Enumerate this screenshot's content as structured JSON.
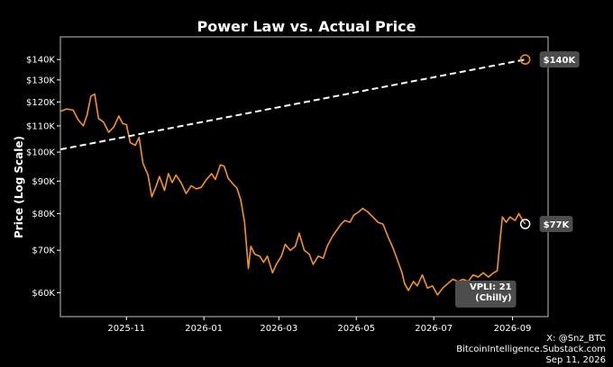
{
  "chart_data": {
    "type": "line",
    "title": "Power Law vs. Actual Price",
    "xlabel": "",
    "ylabel": "Price (Log Scale)",
    "y_scale": "log",
    "grid": false,
    "y_ticks": [
      60000,
      70000,
      80000,
      90000,
      100000,
      110000,
      120000,
      130000,
      140000
    ],
    "y_tick_labels": [
      "$60K",
      "$70K",
      "$80K",
      "$90K",
      "$100K",
      "$110K",
      "$120K",
      "$130K",
      "$140K"
    ],
    "ylim": [
      55000,
      152000
    ],
    "x_ticks": [
      "2025-11",
      "2026-01",
      "2026-03",
      "2026-05",
      "2026-07",
      "2026-09"
    ],
    "xlim": [
      "2025-09-10",
      "2026-09-29"
    ],
    "series": [
      {
        "line_style": "solid",
        "color": "#f7931a",
        "points": [
          [
            "2025-09-10",
            116000
          ],
          [
            "2025-09-15",
            117000
          ],
          [
            "2025-09-20",
            116500
          ],
          [
            "2025-09-24",
            112500
          ],
          [
            "2025-09-28",
            110000
          ],
          [
            "2025-10-01",
            114500
          ],
          [
            "2025-10-04",
            122500
          ],
          [
            "2025-10-07",
            123500
          ],
          [
            "2025-10-10",
            113000
          ],
          [
            "2025-10-14",
            111500
          ],
          [
            "2025-10-18",
            107500
          ],
          [
            "2025-10-22",
            109500
          ],
          [
            "2025-10-26",
            114000
          ],
          [
            "2025-10-29",
            111000
          ],
          [
            "2025-11-01",
            110500
          ],
          [
            "2025-11-04",
            103500
          ],
          [
            "2025-11-08",
            102500
          ],
          [
            "2025-11-11",
            105500
          ],
          [
            "2025-11-14",
            96000
          ],
          [
            "2025-11-18",
            92000
          ],
          [
            "2025-11-21",
            85000
          ],
          [
            "2025-11-24",
            88000
          ],
          [
            "2025-11-27",
            91500
          ],
          [
            "2025-12-01",
            87000
          ],
          [
            "2025-12-04",
            92500
          ],
          [
            "2025-12-07",
            89500
          ],
          [
            "2025-12-10",
            92000
          ],
          [
            "2025-12-14",
            89500
          ],
          [
            "2025-12-18",
            86000
          ],
          [
            "2025-12-22",
            88500
          ],
          [
            "2025-12-26",
            87500
          ],
          [
            "2025-12-30",
            88000
          ],
          [
            "2026-01-03",
            90500
          ],
          [
            "2026-01-07",
            92500
          ],
          [
            "2026-01-10",
            90500
          ],
          [
            "2026-01-14",
            95500
          ],
          [
            "2026-01-17",
            95000
          ],
          [
            "2026-01-20",
            91000
          ],
          [
            "2026-01-24",
            89000
          ],
          [
            "2026-01-27",
            87800
          ],
          [
            "2026-01-30",
            84000
          ],
          [
            "2026-02-02",
            77500
          ],
          [
            "2026-02-05",
            65500
          ],
          [
            "2026-02-07",
            71000
          ],
          [
            "2026-02-10",
            69000
          ],
          [
            "2026-02-14",
            68500
          ],
          [
            "2026-02-17",
            67000
          ],
          [
            "2026-02-20",
            68500
          ],
          [
            "2026-02-24",
            64500
          ],
          [
            "2026-02-27",
            66500
          ],
          [
            "2026-03-03",
            68500
          ],
          [
            "2026-03-06",
            71500
          ],
          [
            "2026-03-10",
            70000
          ],
          [
            "2026-03-14",
            71000
          ],
          [
            "2026-03-17",
            74500
          ],
          [
            "2026-03-21",
            70000
          ],
          [
            "2026-03-25",
            69000
          ],
          [
            "2026-03-28",
            66500
          ],
          [
            "2026-04-01",
            68500
          ],
          [
            "2026-04-05",
            68000
          ],
          [
            "2026-04-08",
            71000
          ],
          [
            "2026-04-12",
            73500
          ],
          [
            "2026-04-15",
            75000
          ],
          [
            "2026-04-19",
            77000
          ],
          [
            "2026-04-22",
            78000
          ],
          [
            "2026-04-26",
            77500
          ],
          [
            "2026-04-29",
            79500
          ],
          [
            "2026-05-03",
            80500
          ],
          [
            "2026-05-06",
            81500
          ],
          [
            "2026-05-10",
            80500
          ],
          [
            "2026-05-14",
            79000
          ],
          [
            "2026-05-18",
            77500
          ],
          [
            "2026-05-22",
            77000
          ],
          [
            "2026-05-26",
            73500
          ],
          [
            "2026-05-30",
            70500
          ],
          [
            "2026-06-03",
            67000
          ],
          [
            "2026-06-06",
            64500
          ],
          [
            "2026-06-08",
            62000
          ],
          [
            "2026-06-11",
            60500
          ],
          [
            "2026-06-15",
            62500
          ],
          [
            "2026-06-18",
            61500
          ],
          [
            "2026-06-22",
            64000
          ],
          [
            "2026-06-26",
            61000
          ],
          [
            "2026-06-30",
            61500
          ],
          [
            "2026-07-04",
            59500
          ],
          [
            "2026-07-08",
            61000
          ],
          [
            "2026-07-12",
            62000
          ],
          [
            "2026-07-16",
            63000
          ],
          [
            "2026-07-20",
            62500
          ],
          [
            "2026-07-24",
            63000
          ],
          [
            "2026-07-28",
            62500
          ],
          [
            "2026-08-01",
            64000
          ],
          [
            "2026-08-05",
            63500
          ],
          [
            "2026-08-09",
            64500
          ],
          [
            "2026-08-13",
            63500
          ],
          [
            "2026-08-17",
            64500
          ],
          [
            "2026-08-20",
            65000
          ],
          [
            "2026-08-22",
            72000
          ],
          [
            "2026-08-24",
            79000
          ],
          [
            "2026-08-27",
            77500
          ],
          [
            "2026-08-30",
            79000
          ],
          [
            "2026-09-03",
            78000
          ],
          [
            "2026-09-06",
            80000
          ],
          [
            "2026-09-09",
            78000
          ],
          [
            "2026-09-11",
            77000
          ]
        ]
      },
      {
        "line_style": "dashed",
        "color": "#ffffff",
        "points": [
          [
            "2025-09-10",
            101000
          ],
          [
            "2026-09-11",
            140000
          ]
        ]
      }
    ],
    "annotations": [
      {
        "date": "2026-09-11",
        "value": 140000,
        "label": "$140K",
        "marker": "circle-orange"
      },
      {
        "date": "2026-09-11",
        "value": 77000,
        "label": "$77K",
        "marker": "circle-white"
      },
      {
        "date": "2026-09-01",
        "value": 62500,
        "label": "VPLI: 21\n(Chilly)"
      }
    ]
  },
  "credits": {
    "line1": "X: @Snz_BTC",
    "line2": "BitcoinIntelligence.Substack.com",
    "line3": "Sep 11, 2026"
  },
  "colors": {
    "background": "#000000",
    "price": "#f7931a",
    "power_law": "#ffffff",
    "label_box": "#4d4d4d"
  }
}
